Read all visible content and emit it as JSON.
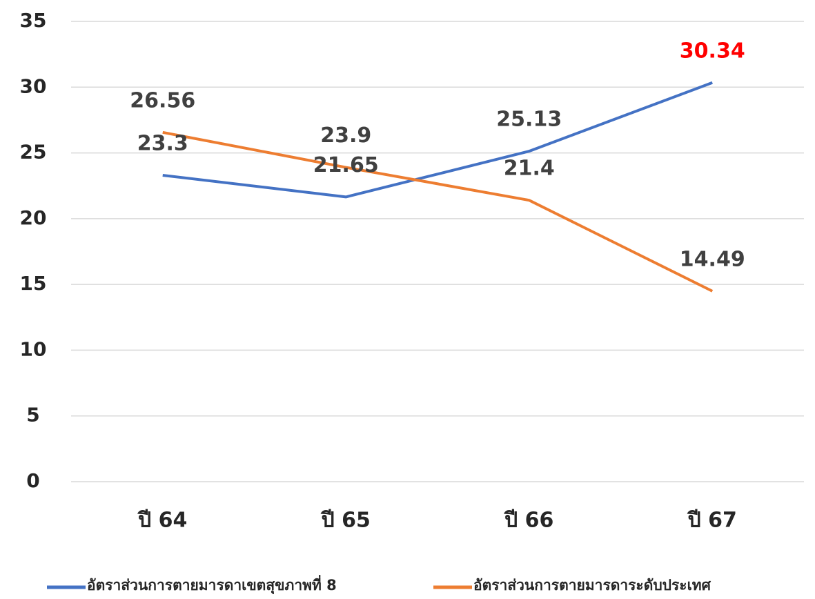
{
  "chart_data": {
    "type": "line",
    "categories": [
      "ปี 64",
      "ปี 65",
      "ปี 66",
      "ปี 67"
    ],
    "series": [
      {
        "name": "อัตราส่วนการตายมารดาเขตสุขภาพที่ 8",
        "color": "#4472c4",
        "values": [
          23.3,
          21.65,
          25.13,
          30.34
        ],
        "label_colors": [
          "#404040",
          "#404040",
          "#404040",
          "#ff0000"
        ]
      },
      {
        "name": "อัตราส่วนการตายมารดาระดับประเทศ",
        "color": "#ed7d31",
        "values": [
          26.56,
          23.9,
          21.4,
          14.49
        ],
        "label_colors": [
          "#404040",
          "#404040",
          "#404040",
          "#404040"
        ]
      }
    ],
    "ylim": [
      0,
      35
    ],
    "yticks": [
      0,
      5,
      10,
      15,
      20,
      25,
      30,
      35
    ],
    "grid": true,
    "legend": "bottom"
  }
}
